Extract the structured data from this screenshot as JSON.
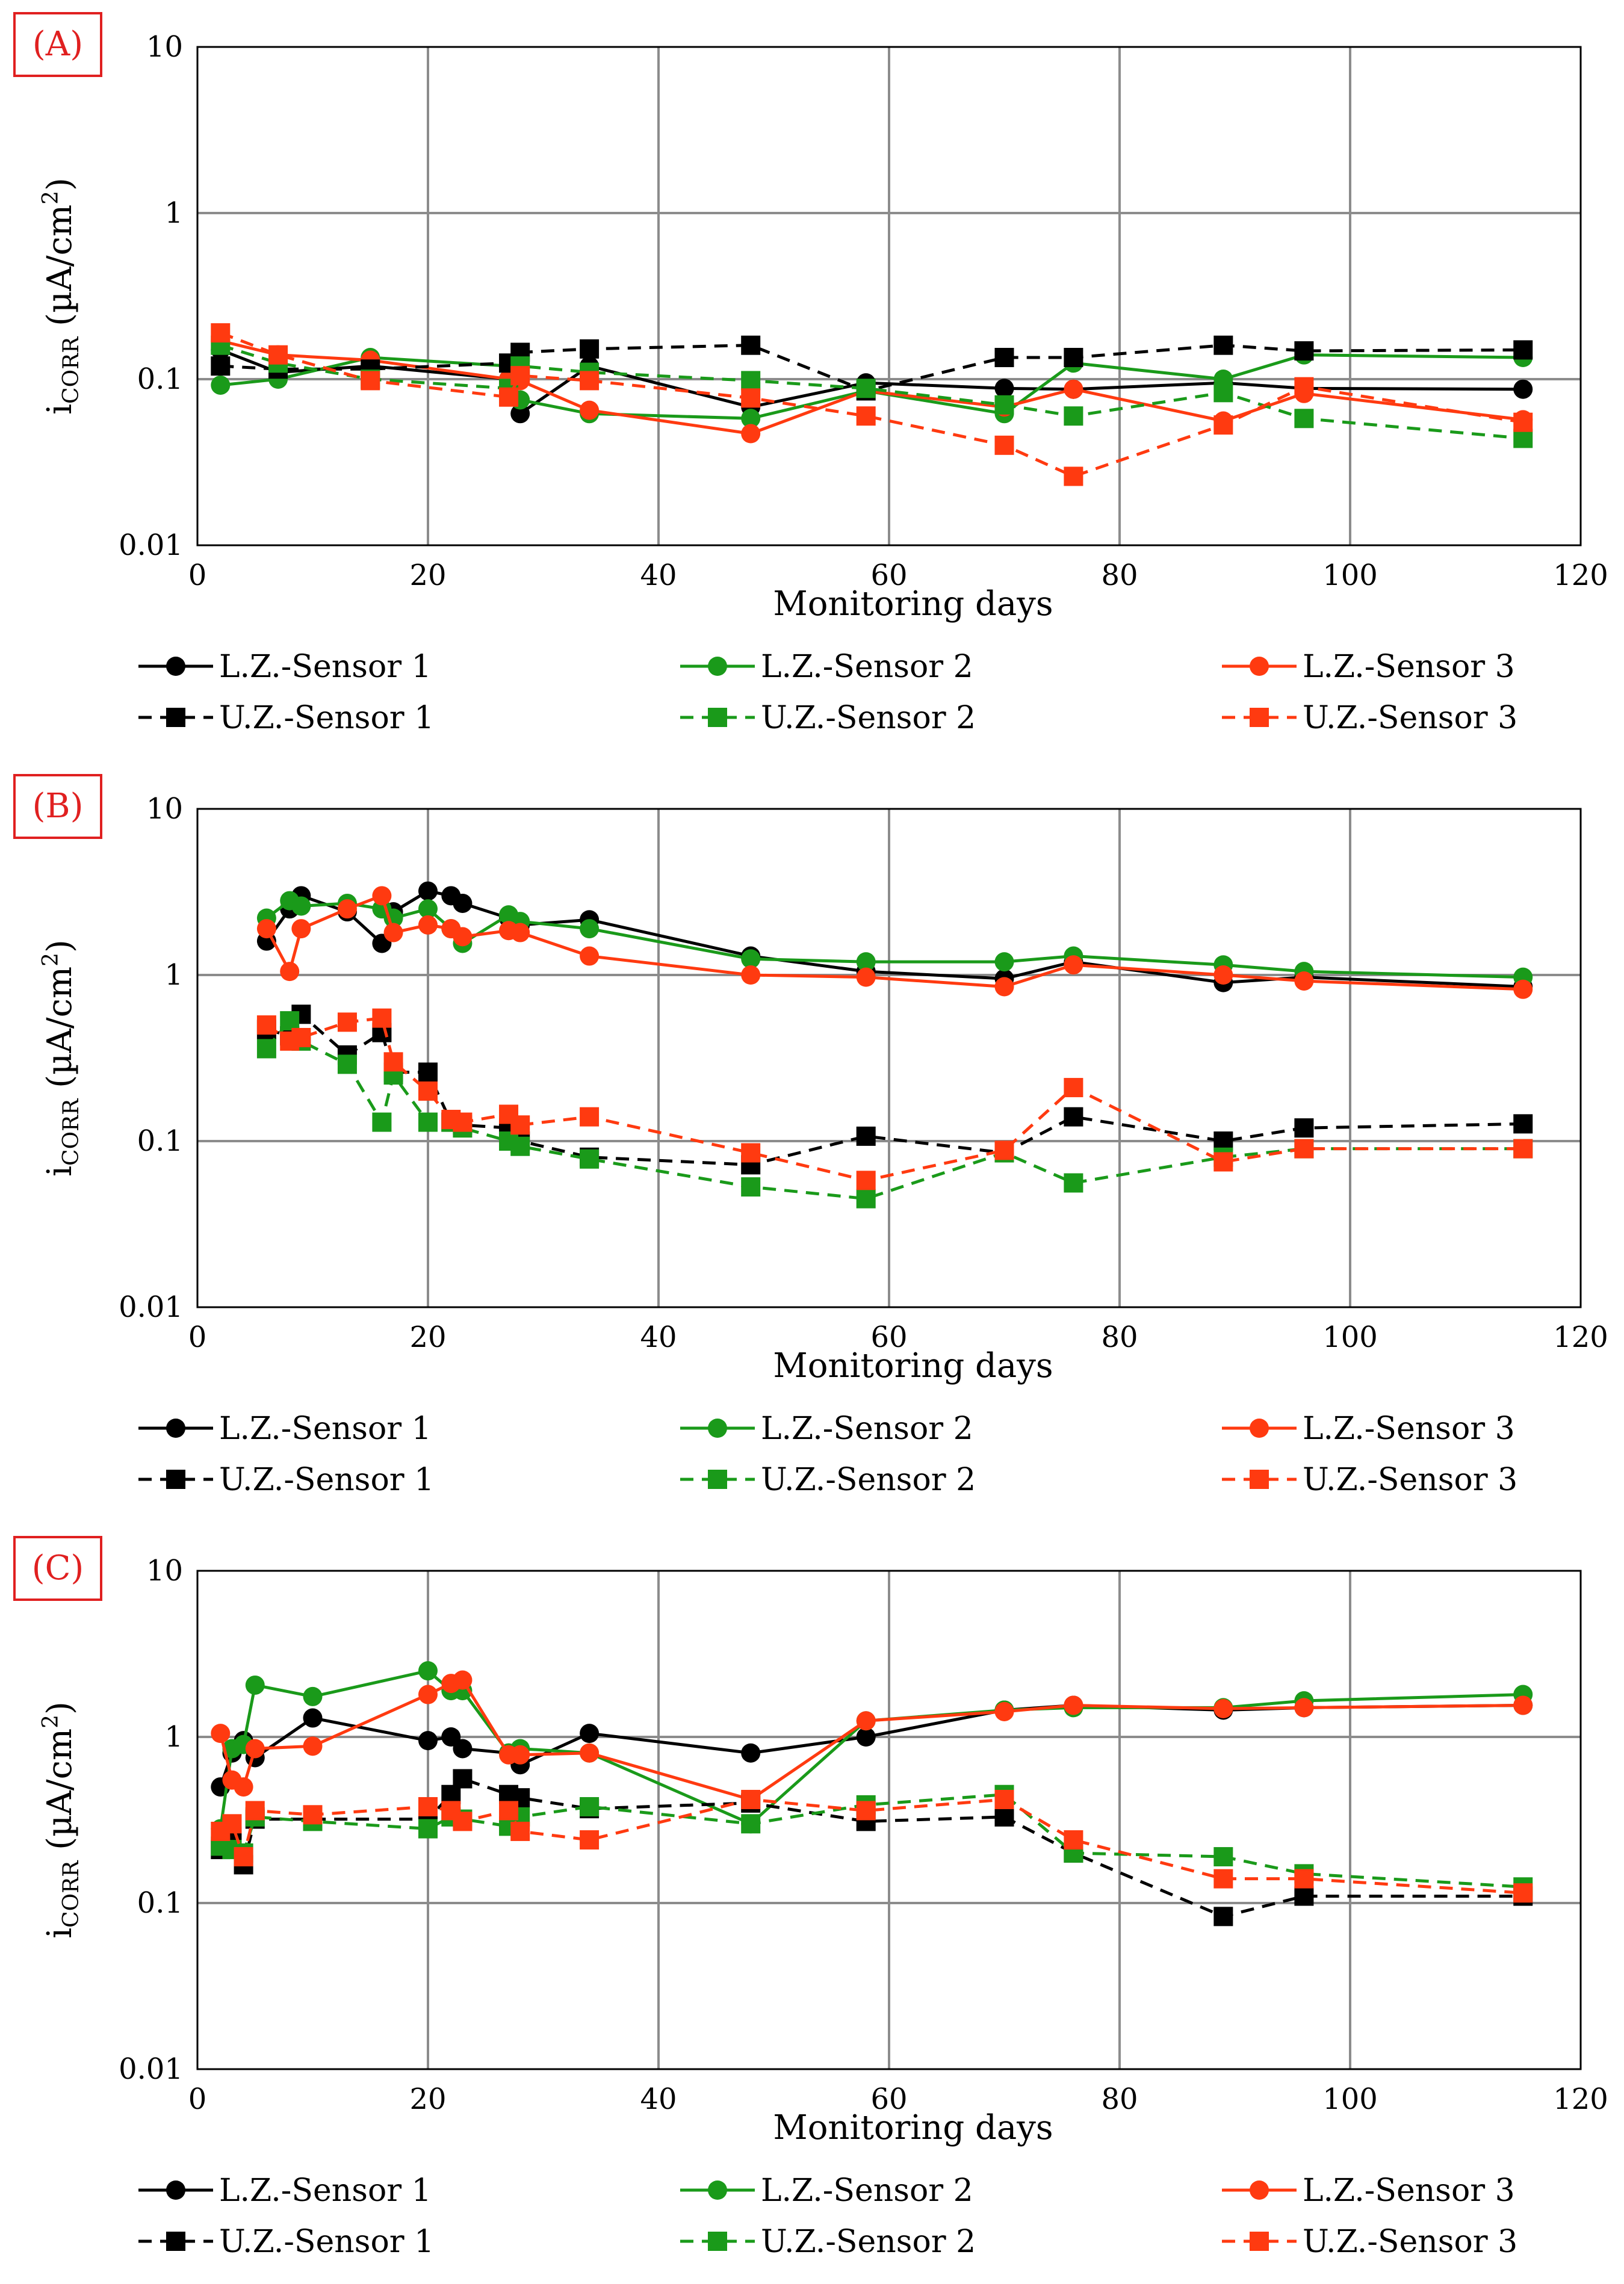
{
  "figure": {
    "ylabel_main": "i",
    "ylabel_sub": "CORR",
    "ylabel_unit_a": " (µA/cm",
    "ylabel_unit_sup": "2",
    "ylabel_unit_b": ")",
    "xlabel": "Monitoring days",
    "colors": {
      "black": "#000000",
      "green": "#1a9a1a",
      "red": "#ff3a10",
      "grid": "#8c8c8c"
    },
    "legend": [
      {
        "label": "L.Z.-Sensor 1",
        "color": "black",
        "marker": "circle",
        "dashed": false
      },
      {
        "label": "L.Z.-Sensor 2",
        "color": "green",
        "marker": "circle",
        "dashed": false
      },
      {
        "label": "L.Z.-Sensor 3",
        "color": "red",
        "marker": "circle",
        "dashed": false
      },
      {
        "label": "U.Z.-Sensor 1",
        "color": "black",
        "marker": "square",
        "dashed": true
      },
      {
        "label": "U.Z.-Sensor 2",
        "color": "green",
        "marker": "square",
        "dashed": true
      },
      {
        "label": "U.Z.-Sensor 3",
        "color": "red",
        "marker": "square",
        "dashed": true
      }
    ]
  },
  "chart_data": [
    {
      "type": "line",
      "panel": "(A)",
      "xlabel": "Monitoring days",
      "ylabel": "iCORR (µA/cm2)",
      "yscale": "log",
      "xlim": [
        0,
        120
      ],
      "ylim": [
        0.01,
        10
      ],
      "xticks": [
        "0",
        "20",
        "40",
        "60",
        "80",
        "100",
        "120"
      ],
      "yticks": [
        "0.01",
        "0.1",
        "1",
        "10"
      ],
      "grid": true,
      "series": [
        {
          "name": "L.Z.-Sensor 1",
          "x": [
            2,
            7,
            15,
            27,
            28,
            34,
            48,
            58,
            70,
            76,
            89,
            96,
            115
          ],
          "y": [
            0.15,
            0.11,
            0.12,
            0.1,
            0.062,
            0.12,
            0.068,
            0.095,
            0.088,
            0.087,
            0.095,
            0.088,
            0.087
          ]
        },
        {
          "name": "L.Z.-Sensor 2",
          "x": [
            2,
            7,
            15,
            27,
            28,
            34,
            48,
            58,
            70,
            76,
            89,
            96,
            115
          ],
          "y": [
            0.092,
            0.1,
            0.135,
            0.12,
            0.075,
            0.062,
            0.058,
            0.085,
            0.062,
            0.125,
            0.1,
            0.14,
            0.135
          ]
        },
        {
          "name": "L.Z.-Sensor 3",
          "x": [
            2,
            7,
            15,
            27,
            28,
            34,
            48,
            58,
            70,
            76,
            89,
            96,
            115
          ],
          "y": [
            0.17,
            0.14,
            0.13,
            0.1,
            0.098,
            0.065,
            0.047,
            0.085,
            0.068,
            0.087,
            0.056,
            0.082,
            0.057
          ]
        },
        {
          "name": "U.Z.-Sensor 1",
          "x": [
            2,
            7,
            15,
            27,
            28,
            34,
            48,
            58,
            70,
            76,
            89,
            96,
            115
          ],
          "y": [
            0.12,
            0.115,
            0.115,
            0.125,
            0.145,
            0.152,
            0.16,
            0.085,
            0.135,
            0.135,
            0.16,
            0.148,
            0.15
          ]
        },
        {
          "name": "U.Z.-Sensor 2",
          "x": [
            2,
            7,
            15,
            27,
            28,
            34,
            48,
            58,
            70,
            76,
            89,
            96,
            115
          ],
          "y": [
            0.16,
            0.125,
            0.1,
            0.088,
            0.12,
            0.11,
            0.098,
            0.088,
            0.07,
            0.06,
            0.083,
            0.058,
            0.044
          ]
        },
        {
          "name": "U.Z.-Sensor 3",
          "x": [
            2,
            7,
            15,
            27,
            28,
            34,
            48,
            58,
            70,
            76,
            89,
            96,
            115
          ],
          "y": [
            0.19,
            0.14,
            0.098,
            0.078,
            0.105,
            0.098,
            0.077,
            0.06,
            0.04,
            0.026,
            0.053,
            0.09,
            0.055
          ]
        }
      ]
    },
    {
      "type": "line",
      "panel": "(B)",
      "xlabel": "Monitoring days",
      "ylabel": "iCORR (µA/cm2)",
      "yscale": "log",
      "xlim": [
        0,
        120
      ],
      "ylim": [
        0.01,
        10
      ],
      "xticks": [
        "0",
        "20",
        "40",
        "60",
        "80",
        "100",
        "120"
      ],
      "yticks": [
        "0.01",
        "0.1",
        "1",
        "10"
      ],
      "grid": true,
      "series": [
        {
          "name": "L.Z.-Sensor 1",
          "x": [
            6,
            8,
            9,
            13,
            16,
            17,
            20,
            22,
            23,
            27,
            28,
            34,
            48,
            58,
            70,
            76,
            89,
            96,
            115
          ],
          "y": [
            1.6,
            2.5,
            3.0,
            2.4,
            1.55,
            2.4,
            3.2,
            3.0,
            2.7,
            2.2,
            2.0,
            2.15,
            1.3,
            1.05,
            0.95,
            1.2,
            0.9,
            0.97,
            0.85
          ]
        },
        {
          "name": "L.Z.-Sensor 2",
          "x": [
            6,
            8,
            9,
            13,
            16,
            17,
            20,
            22,
            23,
            27,
            28,
            34,
            48,
            58,
            70,
            76,
            89,
            96,
            115
          ],
          "y": [
            2.2,
            2.8,
            2.6,
            2.7,
            2.5,
            2.2,
            2.5,
            1.9,
            1.55,
            2.3,
            2.1,
            1.9,
            1.25,
            1.2,
            1.2,
            1.3,
            1.15,
            1.05,
            0.97
          ]
        },
        {
          "name": "L.Z.-Sensor 3",
          "x": [
            6,
            8,
            9,
            13,
            16,
            17,
            20,
            22,
            23,
            27,
            28,
            34,
            48,
            58,
            70,
            76,
            89,
            96,
            115
          ],
          "y": [
            1.9,
            1.05,
            1.9,
            2.5,
            3.0,
            1.8,
            2.0,
            1.9,
            1.7,
            1.85,
            1.8,
            1.3,
            1.0,
            0.97,
            0.85,
            1.15,
            1.0,
            0.92,
            0.82
          ]
        },
        {
          "name": "U.Z.-Sensor 1",
          "x": [
            6,
            8,
            9,
            13,
            16,
            17,
            20,
            22,
            23,
            27,
            28,
            34,
            48,
            58,
            70,
            76,
            89,
            96,
            115
          ],
          "y": [
            0.47,
            0.43,
            0.58,
            0.33,
            0.45,
            0.26,
            0.26,
            0.13,
            0.125,
            0.12,
            0.1,
            0.08,
            0.072,
            0.107,
            0.085,
            0.14,
            0.1,
            0.12,
            0.127
          ]
        },
        {
          "name": "U.Z.-Sensor 2",
          "x": [
            6,
            8,
            9,
            13,
            16,
            17,
            20,
            22,
            23,
            27,
            28,
            34,
            48,
            58,
            70,
            76,
            89,
            96,
            115
          ],
          "y": [
            0.36,
            0.53,
            0.4,
            0.29,
            0.13,
            0.25,
            0.13,
            0.13,
            0.12,
            0.1,
            0.093,
            0.078,
            0.053,
            0.045,
            0.085,
            0.056,
            0.08,
            0.09,
            0.09
          ]
        },
        {
          "name": "U.Z.-Sensor 3",
          "x": [
            6,
            8,
            9,
            13,
            16,
            17,
            20,
            22,
            23,
            27,
            28,
            34,
            48,
            58,
            70,
            76,
            89,
            96,
            115
          ],
          "y": [
            0.5,
            0.4,
            0.42,
            0.52,
            0.55,
            0.3,
            0.2,
            0.135,
            0.13,
            0.145,
            0.125,
            0.14,
            0.085,
            0.058,
            0.088,
            0.21,
            0.075,
            0.09,
            0.09
          ]
        }
      ]
    },
    {
      "type": "line",
      "panel": "(C)",
      "xlabel": "Monitoring days",
      "ylabel": "iCORR (µA/cm2)",
      "yscale": "log",
      "xlim": [
        0,
        120
      ],
      "ylim": [
        0.01,
        10
      ],
      "xticks": [
        "0",
        "20",
        "40",
        "60",
        "80",
        "100",
        "120"
      ],
      "yticks": [
        "0.01",
        "0.1",
        "1",
        "10"
      ],
      "grid": true,
      "series": [
        {
          "name": "L.Z.-Sensor 1",
          "x": [
            2,
            3,
            4,
            5,
            10,
            20,
            22,
            23,
            27,
            28,
            34,
            48,
            58,
            70,
            76,
            89,
            96,
            115
          ],
          "y": [
            0.5,
            0.8,
            0.95,
            0.75,
            1.3,
            0.95,
            1.0,
            0.85,
            0.8,
            0.68,
            1.05,
            0.8,
            1.0,
            1.45,
            1.55,
            1.45,
            1.5,
            1.55
          ]
        },
        {
          "name": "L.Z.-Sensor 2",
          "x": [
            2,
            3,
            4,
            5,
            10,
            20,
            22,
            23,
            27,
            28,
            34,
            48,
            58,
            70,
            76,
            89,
            96,
            115
          ],
          "y": [
            0.28,
            0.85,
            0.9,
            2.05,
            1.75,
            2.5,
            1.9,
            1.9,
            0.8,
            0.85,
            0.8,
            0.3,
            1.25,
            1.45,
            1.5,
            1.5,
            1.65,
            1.8
          ]
        },
        {
          "name": "L.Z.-Sensor 3",
          "x": [
            2,
            3,
            4,
            5,
            10,
            20,
            22,
            23,
            27,
            28,
            34,
            48,
            58,
            70,
            76,
            89,
            96,
            115
          ],
          "y": [
            1.05,
            0.55,
            0.5,
            0.85,
            0.88,
            1.8,
            2.1,
            2.2,
            0.78,
            0.78,
            0.8,
            0.42,
            1.25,
            1.42,
            1.55,
            1.48,
            1.5,
            1.55
          ]
        },
        {
          "name": "U.Z.-Sensor 1",
          "x": [
            2,
            3,
            4,
            5,
            10,
            20,
            22,
            23,
            27,
            28,
            34,
            48,
            58,
            70,
            76,
            89,
            96,
            115
          ],
          "y": [
            0.21,
            0.25,
            0.17,
            0.32,
            0.32,
            0.32,
            0.45,
            0.56,
            0.45,
            0.43,
            0.37,
            0.4,
            0.31,
            0.33,
            0.2,
            0.083,
            0.11,
            0.11
          ]
        },
        {
          "name": "U.Z.-Sensor 2",
          "x": [
            2,
            3,
            4,
            5,
            10,
            20,
            22,
            23,
            27,
            28,
            34,
            48,
            58,
            70,
            76,
            89,
            96,
            115
          ],
          "y": [
            0.22,
            0.21,
            0.2,
            0.33,
            0.31,
            0.28,
            0.33,
            0.32,
            0.29,
            0.33,
            0.38,
            0.3,
            0.39,
            0.45,
            0.2,
            0.19,
            0.15,
            0.125
          ]
        },
        {
          "name": "U.Z.-Sensor 3",
          "x": [
            2,
            3,
            4,
            5,
            10,
            20,
            22,
            23,
            27,
            28,
            34,
            48,
            58,
            70,
            76,
            89,
            96,
            115
          ],
          "y": [
            0.27,
            0.3,
            0.19,
            0.36,
            0.34,
            0.38,
            0.36,
            0.31,
            0.36,
            0.27,
            0.24,
            0.42,
            0.36,
            0.42,
            0.24,
            0.14,
            0.14,
            0.115
          ]
        }
      ]
    }
  ]
}
